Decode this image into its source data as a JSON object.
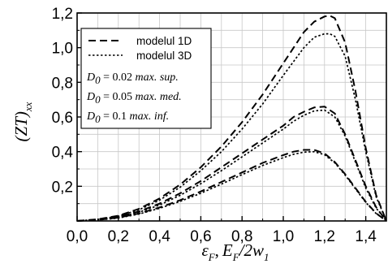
{
  "chart_data": {
    "type": "line",
    "xlim": [
      0,
      1.5
    ],
    "ylim": [
      0,
      1.2
    ],
    "grid": true,
    "xticks": [
      "0,0",
      "0,2",
      "0,4",
      "0,6",
      "0,8",
      "1,0",
      "1,2",
      "1,4"
    ],
    "yticks": [
      "0,2",
      "0,4",
      "0,6",
      "0,8",
      "1,0",
      "1,2"
    ],
    "xlabel": {
      "eps": "ε",
      "sub_f": "F",
      "comma": ",",
      "e": "E",
      "sub_f2": "F",
      "tail": "/2w",
      "sub_1": "1"
    },
    "ylabel": {
      "main": "(ZT)",
      "sub": "xx"
    },
    "legend": {
      "position": "top-left",
      "entries": [
        {
          "label": "modelul 1D",
          "style": "dashed"
        },
        {
          "label": "modelul 3D",
          "style": "dotted"
        }
      ],
      "notes": [
        {
          "d": "D",
          "sub": "0",
          "eq": " = 0.02 ",
          "desc": "max. sup."
        },
        {
          "d": "D",
          "sub": "0",
          "eq": " = 0.05 ",
          "desc": "max. med."
        },
        {
          "d": "D",
          "sub": "0",
          "eq": " = 0.1 ",
          "desc": "max. inf."
        }
      ]
    },
    "series": [
      {
        "model": "1D",
        "D0": "0.02",
        "style": "dashed",
        "x": [
          0,
          0.1,
          0.2,
          0.3,
          0.4,
          0.5,
          0.6,
          0.7,
          0.8,
          0.9,
          1.0,
          1.05,
          1.1,
          1.15,
          1.2,
          1.225,
          1.25,
          1.3,
          1.35,
          1.4,
          1.45,
          1.5
        ],
        "y": [
          0,
          0.01,
          0.03,
          0.07,
          0.13,
          0.21,
          0.31,
          0.43,
          0.57,
          0.73,
          0.91,
          1.0,
          1.09,
          1.15,
          1.18,
          1.185,
          1.17,
          1.03,
          0.75,
          0.42,
          0.15,
          0
        ]
      },
      {
        "model": "3D",
        "D0": "0.02",
        "style": "dotted",
        "x": [
          0,
          0.1,
          0.2,
          0.3,
          0.4,
          0.5,
          0.6,
          0.7,
          0.8,
          0.9,
          1.0,
          1.05,
          1.1,
          1.15,
          1.2,
          1.225,
          1.25,
          1.3,
          1.35,
          1.4,
          1.45,
          1.5
        ],
        "y": [
          0,
          0.009,
          0.027,
          0.064,
          0.12,
          0.195,
          0.29,
          0.4,
          0.53,
          0.675,
          0.84,
          0.92,
          1.0,
          1.06,
          1.08,
          1.08,
          1.065,
          0.95,
          0.7,
          0.4,
          0.14,
          0
        ]
      },
      {
        "model": "1D",
        "D0": "0.05",
        "style": "dashed",
        "x": [
          0,
          0.1,
          0.2,
          0.3,
          0.4,
          0.5,
          0.6,
          0.7,
          0.8,
          0.9,
          1.0,
          1.05,
          1.1,
          1.15,
          1.2,
          1.25,
          1.3,
          1.35,
          1.4,
          1.45,
          1.5
        ],
        "y": [
          0,
          0.008,
          0.025,
          0.055,
          0.1,
          0.16,
          0.23,
          0.31,
          0.39,
          0.47,
          0.55,
          0.6,
          0.63,
          0.655,
          0.66,
          0.62,
          0.5,
          0.35,
          0.2,
          0.08,
          0
        ]
      },
      {
        "model": "3D",
        "D0": "0.05",
        "style": "dotted",
        "x": [
          0,
          0.1,
          0.2,
          0.3,
          0.4,
          0.5,
          0.6,
          0.7,
          0.8,
          0.9,
          1.0,
          1.05,
          1.1,
          1.15,
          1.2,
          1.25,
          1.3,
          1.35,
          1.4,
          1.45,
          1.5
        ],
        "y": [
          0,
          0.007,
          0.022,
          0.05,
          0.092,
          0.148,
          0.215,
          0.29,
          0.37,
          0.45,
          0.53,
          0.575,
          0.61,
          0.635,
          0.64,
          0.6,
          0.49,
          0.34,
          0.19,
          0.075,
          0
        ]
      },
      {
        "model": "1D",
        "D0": "0.1",
        "style": "dashed",
        "x": [
          0,
          0.1,
          0.2,
          0.3,
          0.4,
          0.5,
          0.6,
          0.7,
          0.8,
          0.9,
          1.0,
          1.05,
          1.1,
          1.15,
          1.2,
          1.25,
          1.3,
          1.35,
          1.4,
          1.45,
          1.5
        ],
        "y": [
          0,
          0.006,
          0.019,
          0.043,
          0.078,
          0.12,
          0.17,
          0.225,
          0.28,
          0.335,
          0.38,
          0.4,
          0.41,
          0.41,
          0.39,
          0.34,
          0.27,
          0.19,
          0.11,
          0.045,
          0
        ]
      },
      {
        "model": "3D",
        "D0": "0.1",
        "style": "dotted",
        "x": [
          0,
          0.1,
          0.2,
          0.3,
          0.4,
          0.5,
          0.6,
          0.7,
          0.8,
          0.9,
          1.0,
          1.05,
          1.1,
          1.15,
          1.2,
          1.25,
          1.3,
          1.35,
          1.4,
          1.45,
          1.5
        ],
        "y": [
          0,
          0.005,
          0.017,
          0.04,
          0.073,
          0.113,
          0.16,
          0.213,
          0.267,
          0.32,
          0.365,
          0.385,
          0.397,
          0.4,
          0.382,
          0.335,
          0.265,
          0.185,
          0.107,
          0.043,
          0
        ]
      }
    ]
  }
}
